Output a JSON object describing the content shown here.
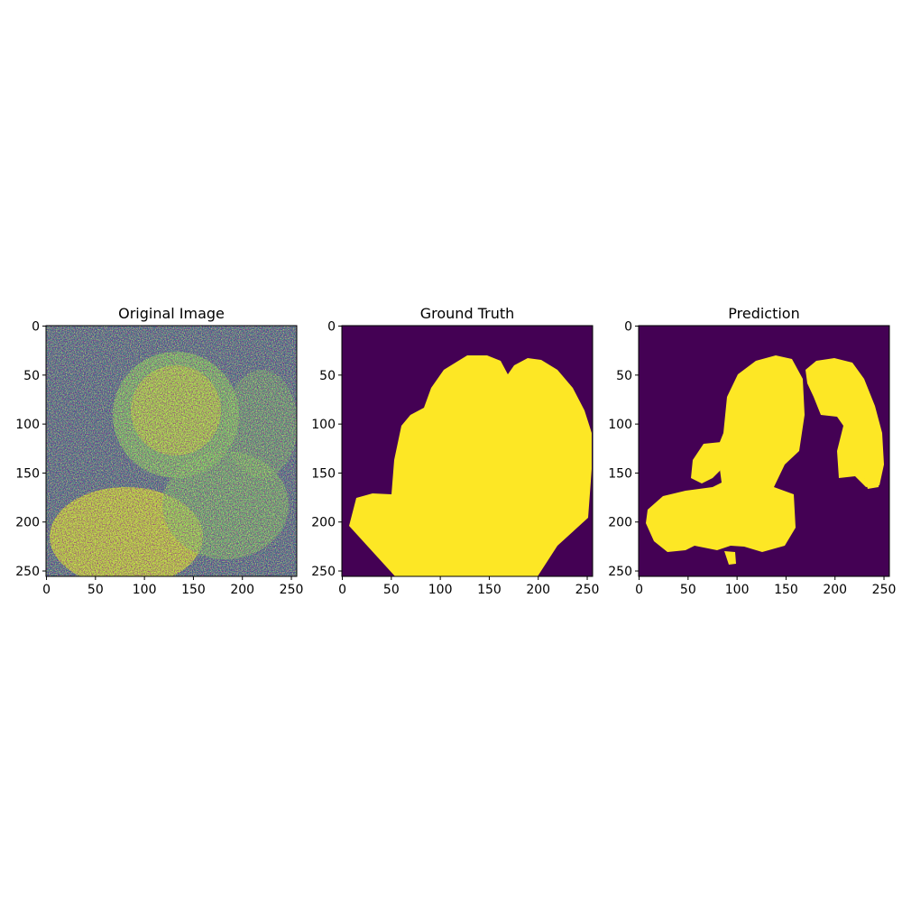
{
  "figure": {
    "panels": [
      {
        "title": "Original Image",
        "kind": "noisy-intensity",
        "x_ticks": [
          "0",
          "50",
          "100",
          "150",
          "200",
          "250"
        ],
        "y_ticks": [
          "0",
          "50",
          "100",
          "150",
          "200",
          "250"
        ]
      },
      {
        "title": "Ground Truth",
        "kind": "binary-mask",
        "x_ticks": [
          "0",
          "50",
          "100",
          "150",
          "200",
          "250"
        ],
        "y_ticks": [
          "0",
          "50",
          "100",
          "150",
          "200",
          "250"
        ]
      },
      {
        "title": "Prediction",
        "kind": "binary-mask",
        "x_ticks": [
          "0",
          "50",
          "100",
          "150",
          "200",
          "250"
        ],
        "y_ticks": [
          "0",
          "50",
          "100",
          "150",
          "200",
          "250"
        ]
      }
    ],
    "colors": {
      "background": "#440154",
      "foreground": "#fde725",
      "mid_teal": "#21918c",
      "mid_green": "#5ec962",
      "light_green": "#b5de2b",
      "dark_blue": "#3b528b"
    },
    "image_size": [
      256,
      256
    ]
  }
}
